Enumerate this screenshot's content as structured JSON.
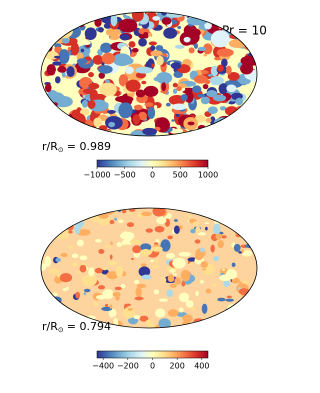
{
  "chart_data": [
    {
      "type": "mollweide",
      "annotation": "Pr = 10",
      "radius_label": "r/R",
      "radius_symbol": "⊙",
      "radius_value": "= 0.989",
      "colormap": [
        "#313695",
        "#4575b4",
        "#74add1",
        "#abd9e9",
        "#e0f3f8",
        "#ffffbf",
        "#fee090",
        "#fdae61",
        "#f46d43",
        "#d73027",
        "#a50026"
      ],
      "clim": [
        -1000,
        1000
      ],
      "cticks": [
        {
          "value": -1000,
          "label": "−1000"
        },
        {
          "value": -500,
          "label": "−500"
        },
        0,
        500,
        1000
      ]
    },
    {
      "type": "mollweide",
      "radius_label": "r/R",
      "radius_symbol": "⊙",
      "radius_value": "= 0.794",
      "colormap": [
        "#313695",
        "#4575b4",
        "#74add1",
        "#abd9e9",
        "#e0f3f8",
        "#ffffbf",
        "#fee090",
        "#fdae61",
        "#f46d43",
        "#d73027",
        "#a50026"
      ],
      "clim": [
        -450,
        450
      ],
      "cticks": [
        {
          "value": -400,
          "label": "−400"
        },
        {
          "value": -200,
          "label": "−200"
        },
        0,
        200,
        400
      ]
    }
  ]
}
